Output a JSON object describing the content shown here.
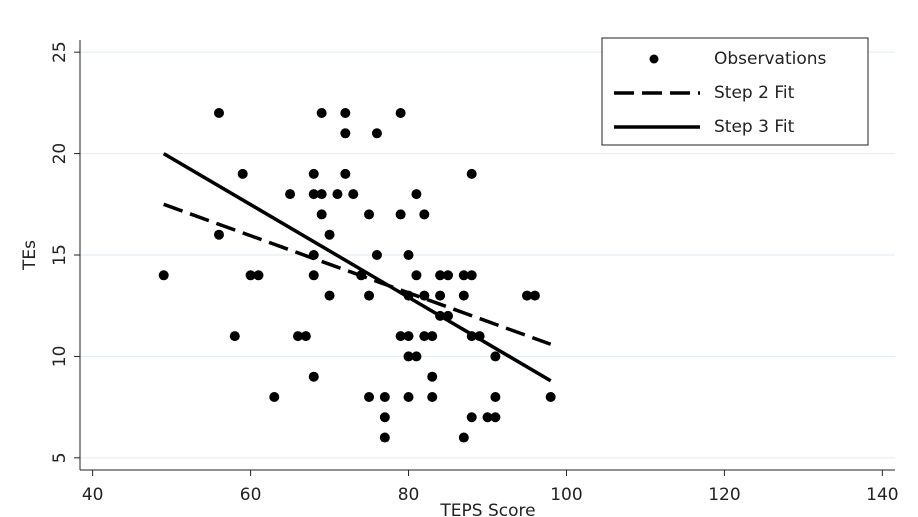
{
  "chart_data": {
    "type": "scatter",
    "xlabel": "TEPS Score",
    "ylabel": "TEs",
    "xlim": [
      38.4,
      141.6
    ],
    "ylim": [
      4.4,
      25.6
    ],
    "xticks": [
      40,
      60,
      80,
      100,
      120,
      140
    ],
    "yticks": [
      5,
      10,
      15,
      20,
      25
    ],
    "grid": true,
    "legend": "upper right",
    "series": [
      {
        "name": "Observations",
        "kind": "points",
        "color": "#000000",
        "x": [
          49,
          56,
          56,
          58,
          59,
          60,
          61,
          63,
          65,
          66,
          67,
          68,
          68,
          68,
          68,
          68,
          69,
          69,
          69,
          70,
          70,
          71,
          72,
          72,
          72,
          73,
          74,
          75,
          75,
          75,
          76,
          76,
          77,
          77,
          77,
          79,
          79,
          79,
          80,
          80,
          80,
          80,
          80,
          81,
          81,
          81,
          82,
          82,
          82,
          83,
          83,
          83,
          84,
          84,
          84,
          85,
          85,
          87,
          87,
          87,
          88,
          88,
          88,
          88,
          89,
          90,
          91,
          91,
          91,
          95,
          96,
          98
        ],
        "values": [
          14,
          22,
          16,
          11,
          19,
          14,
          14,
          8,
          18,
          11,
          11,
          19,
          18,
          15,
          14,
          9,
          22,
          18,
          17,
          16,
          13,
          18,
          22,
          21,
          19,
          18,
          14,
          17,
          13,
          8,
          21,
          15,
          8,
          7,
          6,
          22,
          17,
          11,
          15,
          13,
          11,
          10,
          8,
          18,
          14,
          10,
          17,
          13,
          11,
          11,
          9,
          8,
          14,
          13,
          12,
          14,
          12,
          14,
          13,
          6,
          19,
          14,
          11,
          7,
          11,
          7,
          10,
          8,
          7,
          13,
          13,
          8
        ]
      },
      {
        "name": "Step 2 Fit",
        "kind": "dashed",
        "color": "#000000",
        "x": [
          49,
          98
        ],
        "values": [
          17.5,
          10.6
        ]
      },
      {
        "name": "Step 3 Fit",
        "kind": "solid",
        "color": "#000000",
        "x": [
          49,
          98
        ],
        "values": [
          20,
          8.8
        ]
      }
    ]
  }
}
